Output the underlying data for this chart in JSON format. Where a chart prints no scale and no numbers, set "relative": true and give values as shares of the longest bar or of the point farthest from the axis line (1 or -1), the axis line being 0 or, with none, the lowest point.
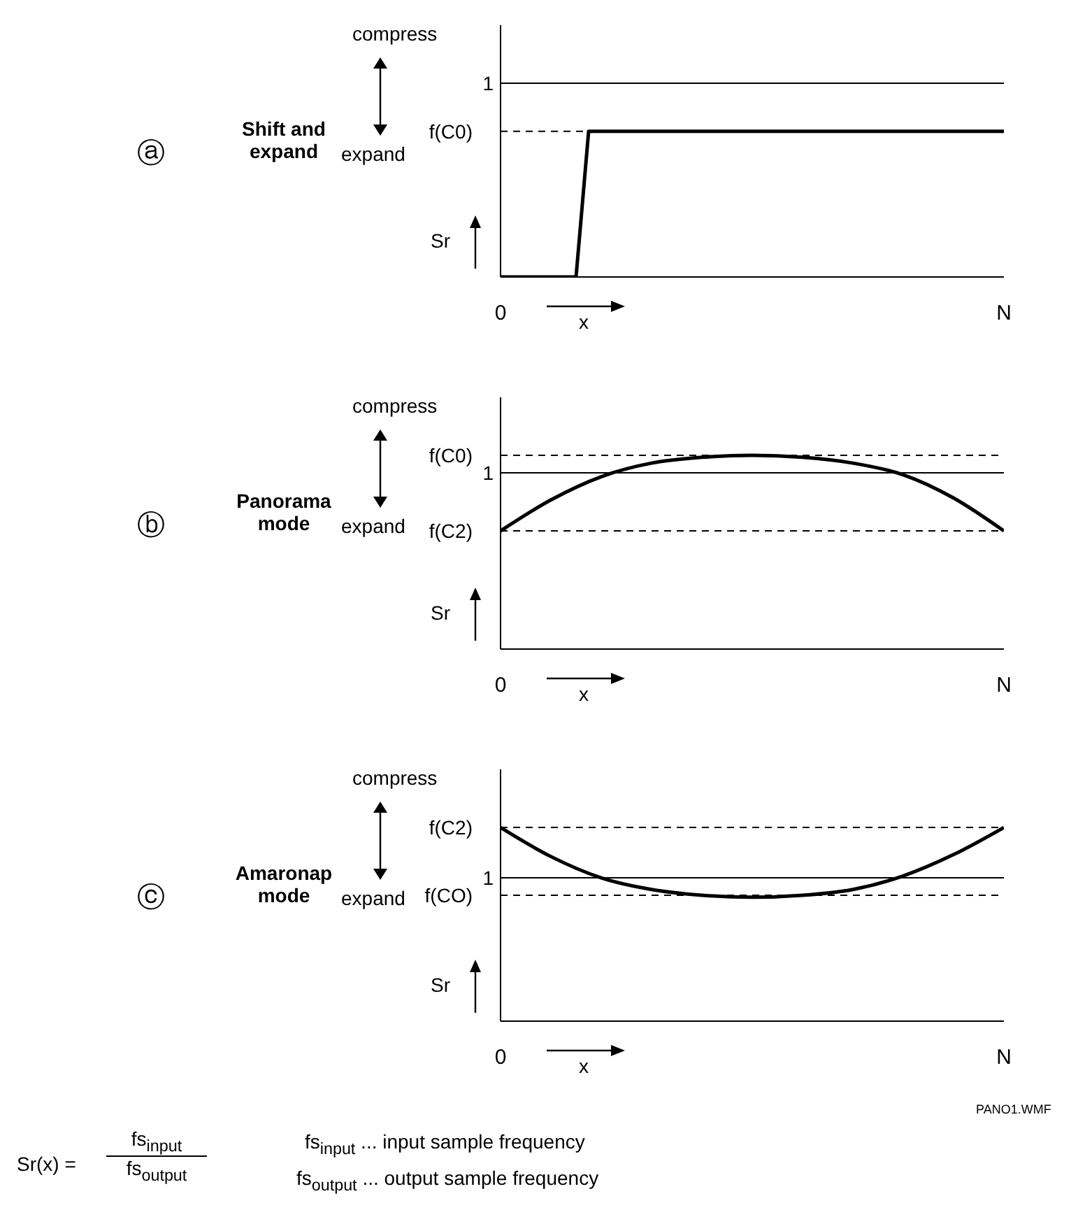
{
  "chart_data": [
    {
      "type": "line",
      "relative": true,
      "categories": [
        "0",
        null,
        null,
        null,
        null,
        null,
        null,
        null,
        null,
        null,
        null,
        null,
        null,
        null,
        null,
        null,
        null,
        null,
        null,
        null,
        null,
        null,
        null,
        null,
        null,
        null,
        null,
        null,
        null,
        null,
        null,
        null,
        null,
        null,
        null,
        null,
        null,
        null,
        null,
        null,
        "N"
      ],
      "series": [
        {
          "color": "#000000",
          "values": [
            0,
            0,
            0,
            0,
            0,
            0,
            0,
            1,
            1,
            1,
            1,
            1,
            1,
            1,
            1,
            1,
            1,
            1,
            1,
            1,
            1,
            1,
            1,
            1,
            1,
            1,
            1,
            1,
            1,
            1,
            1,
            1,
            1,
            1,
            1,
            1,
            1,
            1,
            1,
            1,
            1
          ]
        }
      ],
      "ref_lines": [
        {
          "axis": "y",
          "value": 1.33,
          "label": "1",
          "line_style": "solid"
        },
        {
          "axis": "y",
          "value": 1,
          "label": "f(C0)",
          "line_style": "dashed"
        }
      ],
      "annotations": [
        "ⓐ",
        "compress",
        "expand",
        "Sr",
        "x",
        "Shift and expand"
      ]
    },
    {
      "type": "line",
      "relative": true,
      "categories": [
        "0",
        null,
        null,
        null,
        null,
        null,
        null,
        null,
        null,
        null,
        "N"
      ],
      "series": [
        {
          "color": "#000000",
          "values": [
            0.61,
            0.77,
            0.89,
            0.96,
            0.99,
            1,
            0.99,
            0.96,
            0.9,
            0.78,
            0.61
          ]
        }
      ],
      "ref_lines": [
        {
          "axis": "y",
          "value": 1,
          "label": "f(C0)",
          "line_style": "dashed"
        },
        {
          "axis": "y",
          "value": 0.91,
          "label": "1",
          "line_style": "solid"
        },
        {
          "axis": "y",
          "value": 0.61,
          "label": "f(C2)",
          "line_style": "dashed"
        }
      ],
      "annotations": [
        "ⓑ",
        "compress",
        "expand",
        "Sr",
        "x",
        "Panorama mode"
      ]
    },
    {
      "type": "line",
      "relative": true,
      "categories": [
        "0",
        null,
        null,
        null,
        null,
        null,
        null,
        null,
        null,
        null,
        "N"
      ],
      "series": [
        {
          "color": "#000000",
          "values": [
            1,
            0.85,
            0.74,
            0.68,
            0.65,
            0.64,
            0.65,
            0.68,
            0.75,
            0.86,
            1
          ]
        }
      ],
      "ref_lines": [
        {
          "axis": "y",
          "value": 1,
          "label": "f(C2)",
          "line_style": "dashed"
        },
        {
          "axis": "y",
          "value": 0.74,
          "label": "1",
          "line_style": "solid"
        },
        {
          "axis": "y",
          "value": 0.65,
          "label": "f(CO)",
          "line_style": "dashed"
        }
      ],
      "annotations": [
        "ⓒ",
        "compress",
        "expand",
        "Sr",
        "x",
        "Amaronap mode",
        "PANO1.WMF"
      ]
    },
    {
      "type": "other",
      "annotations": [
        "Sr(x) =",
        "fs$_{input}$",
        "fs$_{output}$",
        "fs$_{input}$ ... input sample frequency",
        "fs$_{output}$ ... output sample frequency"
      ]
    }
  ]
}
